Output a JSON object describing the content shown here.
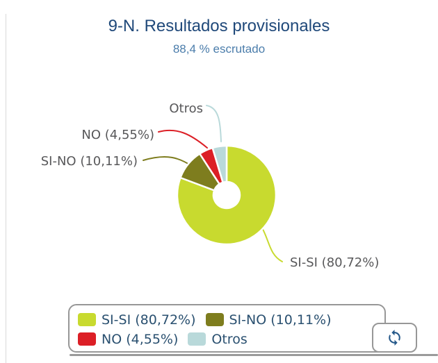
{
  "header": {
    "title": "9-N. Resultados provisionales",
    "subtitle": "88,4 % escrutado"
  },
  "chart_data": {
    "type": "pie",
    "donut": true,
    "title": "9-N. Resultados provisionales",
    "subtitle": "88,4 % escrutado",
    "unit": "%",
    "legend_position": "bottom",
    "slices": [
      {
        "name": "SI-SI",
        "value": 80.72,
        "label": "SI-SI (80,72%)",
        "color": "#c8da2f"
      },
      {
        "name": "SI-NO",
        "value": 10.11,
        "label": "SI-NO (10,11%)",
        "color": "#7e7d1e"
      },
      {
        "name": "NO",
        "value": 4.55,
        "label": "NO (4,55%)",
        "color": "#dc1f26"
      },
      {
        "name": "Otros",
        "value": 4.62,
        "label": "Otros",
        "color": "#b9d9da"
      }
    ]
  },
  "controls": {
    "refresh_button": {
      "icon": "refresh-icon"
    }
  },
  "colors": {
    "title_navy": "#20497a",
    "subtitle_blue": "#4b7dab",
    "legend_text_navy": "#2a5070",
    "callout_label_gray": "#58585a",
    "border_gray": "#979797",
    "icon_navy": "#26598a"
  }
}
